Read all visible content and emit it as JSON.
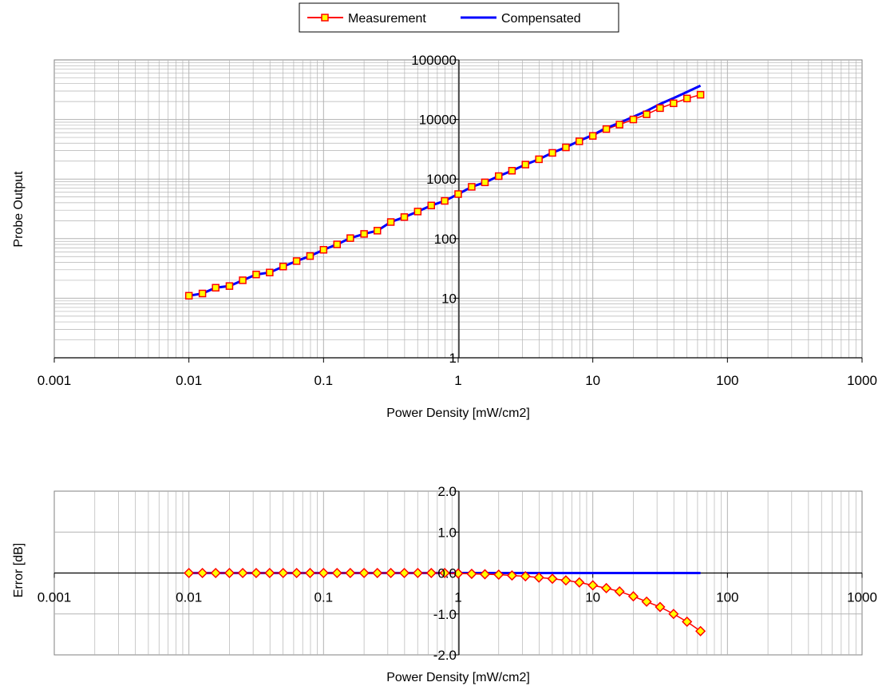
{
  "colors": {
    "measurement_line": "#ff0000",
    "measurement_marker_fill": "#ffff00",
    "compensated_line": "#0000ff",
    "grid": "#b3b3b3"
  },
  "legend": {
    "placement": "top-center",
    "items": [
      {
        "label": "Measurement",
        "marker": "square"
      },
      {
        "label": "Compensated",
        "marker": "none"
      }
    ]
  },
  "chart_data": [
    {
      "type": "line",
      "xlabel": "Power Density [mW/cm2]",
      "ylabel": "Probe Output",
      "xscale": "log",
      "yscale": "log",
      "xlim": [
        0.001,
        1000
      ],
      "ylim": [
        1,
        100000
      ],
      "xticks": [
        "0.001",
        "0.01",
        "0.1",
        "1",
        "10",
        "100",
        "1000"
      ],
      "yticks": [
        "1",
        "10",
        "100",
        "1000",
        "10000",
        "100000"
      ],
      "grid": true,
      "series": [
        {
          "name": "Measurement",
          "marker": "square",
          "x": [
            0.01,
            0.0126,
            0.0158,
            0.02,
            0.0251,
            0.0316,
            0.0398,
            0.0501,
            0.0631,
            0.0794,
            0.1,
            0.126,
            0.158,
            0.2,
            0.251,
            0.316,
            0.398,
            0.501,
            0.631,
            0.794,
            1,
            1.26,
            1.58,
            2,
            2.51,
            3.16,
            3.98,
            5.01,
            6.31,
            7.94,
            10,
            12.6,
            15.8,
            20,
            25.1,
            31.6,
            39.8,
            50.1,
            63.1
          ],
          "y": [
            11,
            12,
            15,
            16,
            20,
            25,
            27,
            34,
            42,
            51,
            65,
            80,
            102,
            120,
            136,
            190,
            230,
            285,
            360,
            430,
            560,
            740,
            880,
            1120,
            1380,
            1750,
            2150,
            2750,
            3400,
            4300,
            5300,
            6900,
            8200,
            10000,
            12200,
            15500,
            18700,
            22500,
            26000
          ]
        },
        {
          "name": "Compensated",
          "marker": "none",
          "x": [
            0.01,
            0.0126,
            0.0158,
            0.02,
            0.0251,
            0.0316,
            0.0398,
            0.0501,
            0.0631,
            0.0794,
            0.1,
            0.126,
            0.158,
            0.2,
            0.251,
            0.316,
            0.398,
            0.501,
            0.631,
            0.794,
            1,
            1.26,
            1.58,
            2,
            2.51,
            3.16,
            3.98,
            5.01,
            6.31,
            7.94,
            10,
            12.6,
            15.8,
            20,
            25.1,
            31.6,
            39.8,
            50.1,
            63.1
          ],
          "y": [
            11,
            12,
            15,
            16,
            20,
            25,
            27,
            34,
            42,
            51,
            65,
            80,
            102,
            120,
            136,
            190,
            230,
            285,
            360,
            430,
            560,
            740,
            880,
            1120,
            1380,
            1750,
            2150,
            2760,
            3420,
            4380,
            5500,
            7200,
            8800,
            11100,
            13900,
            18200,
            22800,
            29000,
            37000
          ]
        }
      ]
    },
    {
      "type": "line",
      "xlabel": "Power Density [mW/cm2]",
      "ylabel": "Error [dB]",
      "xscale": "log",
      "yscale": "linear",
      "xlim": [
        0.001,
        1000
      ],
      "ylim": [
        -2.0,
        2.0
      ],
      "xticks": [
        "0.001",
        "0.01",
        "0.1",
        "1",
        "10",
        "100",
        "1000"
      ],
      "yticks": [
        "-2.0",
        "-1.0",
        "0.0",
        "1.0",
        "2.0"
      ],
      "grid": true,
      "series": [
        {
          "name": "Measurement",
          "marker": "diamond",
          "x": [
            0.01,
            0.0126,
            0.0158,
            0.02,
            0.0251,
            0.0316,
            0.0398,
            0.0501,
            0.0631,
            0.0794,
            0.1,
            0.126,
            0.158,
            0.2,
            0.251,
            0.316,
            0.398,
            0.501,
            0.631,
            0.794,
            1,
            1.26,
            1.58,
            2,
            2.51,
            3.16,
            3.98,
            5.01,
            6.31,
            7.94,
            10,
            12.6,
            15.8,
            20,
            25.1,
            31.6,
            39.8,
            50.1,
            63.1
          ],
          "y": [
            0,
            0,
            0,
            0,
            0,
            0,
            0,
            0,
            0,
            0,
            0,
            0,
            0,
            0,
            0,
            0,
            0,
            0,
            0,
            0,
            -0.01,
            -0.02,
            -0.03,
            -0.04,
            -0.06,
            -0.08,
            -0.11,
            -0.14,
            -0.18,
            -0.23,
            -0.3,
            -0.37,
            -0.45,
            -0.57,
            -0.7,
            -0.83,
            -1.0,
            -1.19,
            -1.42
          ]
        },
        {
          "name": "Compensated",
          "marker": "none",
          "x": [
            0.01,
            63.1
          ],
          "y": [
            0,
            0
          ]
        }
      ]
    }
  ]
}
